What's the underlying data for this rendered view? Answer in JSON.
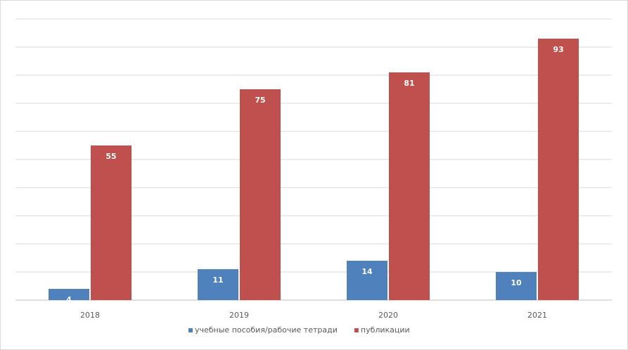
{
  "chart_data": {
    "type": "bar",
    "categories": [
      "2018",
      "2019",
      "2020",
      "2021"
    ],
    "series": [
      {
        "name": "учебные пособия/рабочие тетради",
        "color": "#4f81bd",
        "values": [
          4,
          11,
          14,
          10
        ]
      },
      {
        "name": "публикации",
        "color": "#c0504d",
        "values": [
          55,
          75,
          81,
          93
        ]
      }
    ],
    "ylim": [
      0,
      100
    ],
    "yticks": [
      0,
      10,
      20,
      30,
      40,
      50,
      60,
      70,
      80,
      90,
      100
    ],
    "grid": true,
    "legend": "bottom"
  }
}
